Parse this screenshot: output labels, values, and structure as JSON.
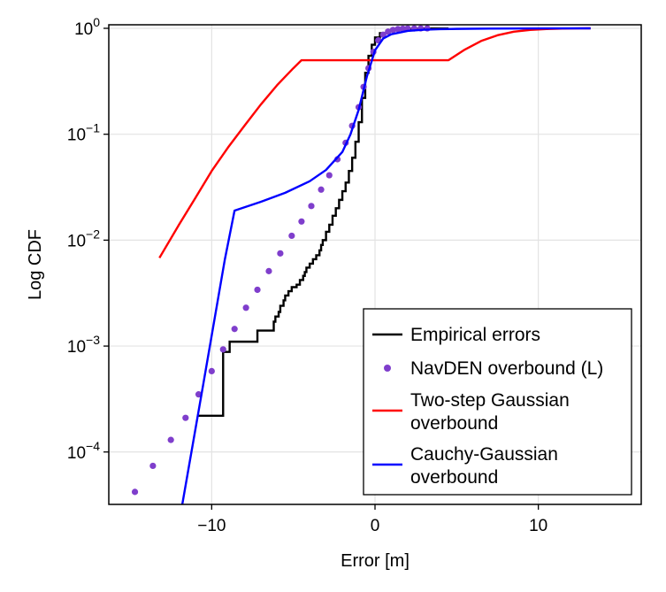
{
  "chart_data": {
    "type": "line",
    "title": "",
    "xlabel": "Error [m]",
    "ylabel": "Log CDF",
    "xscale": "linear",
    "yscale": "log",
    "xlim": [
      -16.3,
      16.3
    ],
    "ylim": [
      3.2e-05,
      1.08
    ],
    "grid": true,
    "x_ticks": [
      {
        "value": -10,
        "label": "−10"
      },
      {
        "value": 0,
        "label": "0"
      },
      {
        "value": 10,
        "label": "10"
      }
    ],
    "y_ticks": [
      {
        "value": 1,
        "base": "10",
        "exp": "0"
      },
      {
        "value": 0.1,
        "base": "10",
        "exp": "−1"
      },
      {
        "value": 0.01,
        "base": "10",
        "exp": "−2"
      },
      {
        "value": 0.001,
        "base": "10",
        "exp": "−3"
      },
      {
        "value": 0.0001,
        "base": "10",
        "exp": "−4"
      }
    ],
    "legend_position": "bottom-right",
    "series": [
      {
        "name": "Empirical errors",
        "legend_lines": [
          "Empirical errors"
        ],
        "kind": "step",
        "color": "#000000",
        "x": [
          -10.9,
          -9.3,
          -9.3,
          -8.9,
          -8.9,
          -7.2,
          -7.2,
          -6.4,
          -6.2,
          -6.1,
          -5.9,
          -5.8,
          -5.6,
          -5.5,
          -5.3,
          -5.1,
          -4.8,
          -4.6,
          -4.4,
          -4.3,
          -4.2,
          -4.0,
          -3.8,
          -3.6,
          -3.4,
          -3.3,
          -3.2,
          -3.0,
          -2.8,
          -2.6,
          -2.4,
          -2.2,
          -2.0,
          -1.8,
          -1.6,
          -1.4,
          -1.2,
          -1.0,
          -0.8,
          -0.6,
          -0.4,
          -0.2,
          0.0,
          0.3,
          0.7,
          1.2,
          2.0,
          3.0,
          4.5
        ],
        "y": [
          0.00022,
          0.00022,
          0.00088,
          0.00088,
          0.0011,
          0.0011,
          0.0014,
          0.0014,
          0.0017,
          0.0019,
          0.0021,
          0.0024,
          0.0027,
          0.003,
          0.0033,
          0.0036,
          0.0038,
          0.0042,
          0.0046,
          0.005,
          0.0055,
          0.006,
          0.0066,
          0.0072,
          0.008,
          0.009,
          0.01,
          0.012,
          0.014,
          0.017,
          0.02,
          0.024,
          0.029,
          0.035,
          0.045,
          0.06,
          0.085,
          0.13,
          0.22,
          0.38,
          0.55,
          0.7,
          0.82,
          0.9,
          0.95,
          0.98,
          0.99,
          0.995,
          1.0
        ]
      },
      {
        "name": "NavDEN overbound (L)",
        "legend_lines": [
          "NavDEN overbound (L)"
        ],
        "kind": "dots",
        "color": "#7f3ecc",
        "x": [
          -14.7,
          -13.6,
          -12.5,
          -11.6,
          -10.8,
          -10.0,
          -9.3,
          -8.6,
          -7.9,
          -7.2,
          -6.5,
          -5.8,
          -5.1,
          -4.5,
          -3.9,
          -3.3,
          -2.8,
          -2.3,
          -1.8,
          -1.4,
          -1.0,
          -0.7,
          -0.4,
          -0.1,
          0.2,
          0.5,
          0.8,
          1.1,
          1.4,
          1.7,
          2.0,
          2.4,
          2.8,
          3.2
        ],
        "y": [
          4.2e-05,
          7.4e-05,
          0.00013,
          0.00021,
          0.00035,
          0.00058,
          0.00093,
          0.00145,
          0.0023,
          0.0034,
          0.0051,
          0.0075,
          0.011,
          0.015,
          0.021,
          0.03,
          0.041,
          0.058,
          0.083,
          0.12,
          0.18,
          0.28,
          0.42,
          0.6,
          0.77,
          0.87,
          0.93,
          0.965,
          0.983,
          0.992,
          0.996,
          0.998,
          0.999,
          0.9995
        ]
      },
      {
        "name": "Two-step Gaussian overbound",
        "legend_lines": [
          "Two-step Gaussian",
          "overbound"
        ],
        "kind": "line",
        "color": "#ff0000",
        "x": [
          -13.2,
          -12.0,
          -11.0,
          -10.0,
          -9.0,
          -8.0,
          -7.0,
          -6.0,
          -5.0,
          -4.5,
          4.5,
          5.5,
          6.5,
          7.5,
          8.5,
          9.5,
          10.5,
          11.5,
          12.5,
          13.2
        ],
        "y": [
          0.0068,
          0.014,
          0.025,
          0.045,
          0.075,
          0.12,
          0.19,
          0.29,
          0.42,
          0.5,
          0.5,
          0.63,
          0.76,
          0.86,
          0.93,
          0.965,
          0.985,
          0.994,
          0.998,
          1.0
        ]
      },
      {
        "name": "Cauchy-Gaussian overbound",
        "legend_lines": [
          "Cauchy-Gaussian",
          "overbound"
        ],
        "kind": "line",
        "color": "#0000ff",
        "x": [
          -11.8,
          -10.5,
          -9.2,
          -8.6,
          -7.0,
          -5.5,
          -4.0,
          -3.0,
          -2.0,
          -1.5,
          -1.0,
          -0.5,
          0.0,
          0.5,
          1.0,
          2.0,
          3.0,
          4.0,
          5.0,
          7.0,
          9.0,
          11.0,
          13.2
        ],
        "y": [
          3.2e-05,
          0.00045,
          0.0065,
          0.019,
          0.023,
          0.028,
          0.036,
          0.046,
          0.068,
          0.1,
          0.17,
          0.35,
          0.62,
          0.8,
          0.88,
          0.945,
          0.97,
          0.982,
          0.988,
          0.994,
          0.997,
          0.999,
          1.0
        ]
      }
    ]
  }
}
